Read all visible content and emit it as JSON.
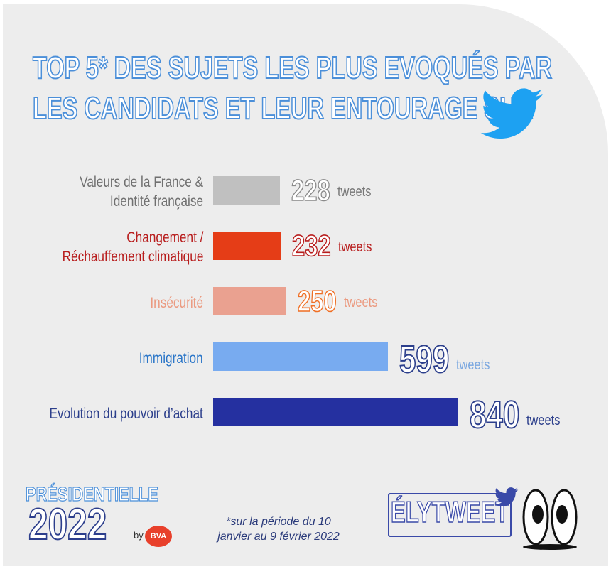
{
  "title": {
    "line1": "TOP 5* DES SUJETS LES PLUS EVOQUÉS PAR",
    "line2": "LES CANDIDATS ET LEUR ENTOURAGE SUR"
  },
  "icons": {
    "title_bird": "twitter-bird-icon",
    "brand_bird": "twitter-bird-icon",
    "eyes": "cartoon-eyes-icon"
  },
  "chart_data": {
    "type": "bar",
    "orientation": "horizontal",
    "unit": "tweets",
    "title": "TOP 5* DES SUJETS LES PLUS EVOQUÉS PAR LES CANDIDATS ET LEUR ENTOURAGE SUR TWITTER",
    "max_value": 840,
    "items": [
      {
        "label_lines": [
          "Valeurs de la France &",
          "Identité française"
        ],
        "value": 228,
        "value_text": "228",
        "unit_text": "tweets",
        "bar_color": "#c0c0c0",
        "label_color": "#707070",
        "number_stroke": "#8a8a8a",
        "unit_color": "#777777"
      },
      {
        "label_lines": [
          "Changement /",
          "Réchauffement climatique"
        ],
        "value": 232,
        "value_text": "232",
        "unit_text": "tweets",
        "bar_color": "#e53d17",
        "label_color": "#b81d1d",
        "number_stroke": "#b81d1d",
        "unit_color": "#b81d1d"
      },
      {
        "label_lines": [
          "Insécurité"
        ],
        "value": 250,
        "value_text": "250",
        "unit_text": "tweets",
        "bar_color": "#eaa190",
        "label_color": "#eb9a80",
        "number_stroke": "#ef6f25",
        "unit_color": "#eb9a80"
      },
      {
        "label_lines": [
          "Immigration"
        ],
        "value": 599,
        "value_text": "599",
        "unit_text": "tweets",
        "bar_color": "#78abf0",
        "label_color": "#2b76c8",
        "number_stroke": "#2c3f8c",
        "unit_color": "#7aa7e0"
      },
      {
        "label_lines": [
          "Evolution du pouvoir d’achat"
        ],
        "value": 840,
        "value_text": "840",
        "unit_text": "tweets",
        "bar_color": "#2530a0",
        "label_color": "#2c3f8c",
        "number_stroke": "#2c3f8c",
        "unit_color": "#2c3f8c"
      }
    ]
  },
  "footer": {
    "presidentielle": "PRÉSIDENTIELLE",
    "year": "2022",
    "by": "by",
    "bva": "BVA",
    "note_line1": "*sur la période du 10",
    "note_line2": "janvier au 9 février 2022",
    "brand": "ÉLYTWEET"
  },
  "colors": {
    "background": "#ededed",
    "title_stroke": "#4b8fd9",
    "twitter_blue": "#1da1f2"
  }
}
